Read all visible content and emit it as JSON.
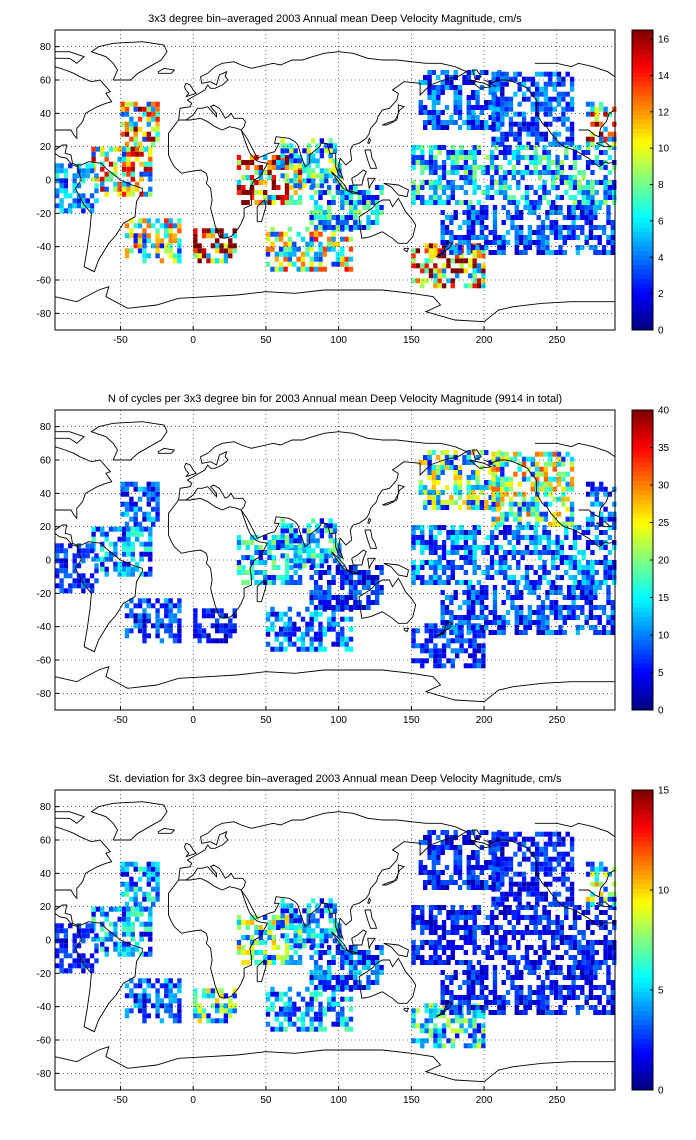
{
  "chart_data": [
    {
      "type": "heatmap",
      "title": "3x3 degree bin–averaged 2003 Annual mean Deep Velocity Magnitude, cm/s",
      "xlabel": "",
      "ylabel": "",
      "xlim": [
        -95,
        290
      ],
      "ylim": [
        -90,
        90
      ],
      "xticks": [
        -50,
        0,
        50,
        100,
        150,
        200,
        250
      ],
      "yticks": [
        80,
        60,
        40,
        20,
        0,
        -20,
        -40,
        -60,
        -80
      ],
      "grid": true,
      "colorbar": {
        "min": 0,
        "max": 16.5,
        "ticks": [
          0,
          2,
          4,
          6,
          8,
          10,
          12,
          14,
          16
        ],
        "colormap": "jet"
      },
      "region_means": [
        {
          "lon0": -50,
          "lon1": -24,
          "lat0": 20,
          "lat1": 47,
          "value": 10
        },
        {
          "lon0": -70,
          "lon1": -30,
          "lat0": -10,
          "lat1": 18,
          "value": 9
        },
        {
          "lon0": -95,
          "lon1": -65,
          "lat0": -20,
          "lat1": 10,
          "value": 4
        },
        {
          "lon0": -47,
          "lon1": -10,
          "lat0": -50,
          "lat1": -25,
          "value": 8
        },
        {
          "lon0": 0,
          "lon1": 30,
          "lat0": -50,
          "lat1": -30,
          "value": 14
        },
        {
          "lon0": 30,
          "lon1": 75,
          "lat0": -15,
          "lat1": 15,
          "value": 11
        },
        {
          "lon0": 60,
          "lon1": 100,
          "lat0": -5,
          "lat1": 25,
          "value": 6
        },
        {
          "lon0": 50,
          "lon1": 110,
          "lat0": -55,
          "lat1": -30,
          "value": 8
        },
        {
          "lon0": 80,
          "lon1": 130,
          "lat0": -30,
          "lat1": -5,
          "value": 5
        },
        {
          "lon0": 150,
          "lon1": 200,
          "lat0": -65,
          "lat1": -40,
          "value": 11
        },
        {
          "lon0": 155,
          "lon1": 210,
          "lat0": 30,
          "lat1": 65,
          "value": 3
        },
        {
          "lon0": 205,
          "lon1": 260,
          "lat0": 20,
          "lat1": 65,
          "value": 3
        },
        {
          "lon0": 150,
          "lon1": 290,
          "lat0": -15,
          "lat1": 20,
          "value": 5
        },
        {
          "lon0": 170,
          "lon1": 290,
          "lat0": -45,
          "lat1": -15,
          "value": 3
        },
        {
          "lon0": 270,
          "lon1": 290,
          "lat0": 20,
          "lat1": 45,
          "value": 10
        }
      ]
    },
    {
      "type": "heatmap",
      "title": "N of cycles per 3x3 degree bin for 2003 Annual mean Deep Velocity Magnitude (9914 in total)",
      "xlabel": "",
      "ylabel": "",
      "xlim": [
        -95,
        290
      ],
      "ylim": [
        -90,
        90
      ],
      "xticks": [
        -50,
        0,
        50,
        100,
        150,
        200,
        250
      ],
      "yticks": [
        80,
        60,
        40,
        20,
        0,
        -20,
        -40,
        -60,
        -80
      ],
      "grid": true,
      "colorbar": {
        "min": 0,
        "max": 40,
        "ticks": [
          0,
          5,
          10,
          15,
          20,
          25,
          30,
          35,
          40
        ],
        "colormap": "jet"
      },
      "region_means": [
        {
          "lon0": -50,
          "lon1": -24,
          "lat0": 20,
          "lat1": 47,
          "value": 8
        },
        {
          "lon0": -70,
          "lon1": -30,
          "lat0": -10,
          "lat1": 18,
          "value": 10
        },
        {
          "lon0": -95,
          "lon1": -65,
          "lat0": -20,
          "lat1": 10,
          "value": 6
        },
        {
          "lon0": -47,
          "lon1": -10,
          "lat0": -50,
          "lat1": -25,
          "value": 7
        },
        {
          "lon0": 0,
          "lon1": 30,
          "lat0": -50,
          "lat1": -30,
          "value": 5
        },
        {
          "lon0": 30,
          "lon1": 75,
          "lat0": -15,
          "lat1": 15,
          "value": 12
        },
        {
          "lon0": 60,
          "lon1": 100,
          "lat0": -5,
          "lat1": 25,
          "value": 12
        },
        {
          "lon0": 50,
          "lon1": 110,
          "lat0": -55,
          "lat1": -30,
          "value": 9
        },
        {
          "lon0": 80,
          "lon1": 130,
          "lat0": -30,
          "lat1": -5,
          "value": 6
        },
        {
          "lon0": 150,
          "lon1": 200,
          "lat0": -65,
          "lat1": -40,
          "value": 6
        },
        {
          "lon0": 155,
          "lon1": 210,
          "lat0": 30,
          "lat1": 65,
          "value": 16
        },
        {
          "lon0": 205,
          "lon1": 260,
          "lat0": 20,
          "lat1": 65,
          "value": 18
        },
        {
          "lon0": 150,
          "lon1": 290,
          "lat0": -15,
          "lat1": 20,
          "value": 9
        },
        {
          "lon0": 170,
          "lon1": 290,
          "lat0": -45,
          "lat1": -15,
          "value": 7
        },
        {
          "lon0": 270,
          "lon1": 290,
          "lat0": 20,
          "lat1": 45,
          "value": 8
        }
      ]
    },
    {
      "type": "heatmap",
      "title": "St. deviation for 3x3 degree bin–averaged 2003 Annual mean Deep Velocity Magnitude, cm/s",
      "xlabel": "",
      "ylabel": "",
      "xlim": [
        -95,
        290
      ],
      "ylim": [
        -90,
        90
      ],
      "xticks": [
        -50,
        0,
        50,
        100,
        150,
        200,
        250
      ],
      "yticks": [
        80,
        60,
        40,
        20,
        0,
        -20,
        -40,
        -60,
        -80
      ],
      "grid": true,
      "colorbar": {
        "min": 0,
        "max": 15,
        "ticks": [
          0,
          5,
          10,
          15
        ],
        "colormap": "jet"
      },
      "region_means": [
        {
          "lon0": -50,
          "lon1": -24,
          "lat0": 20,
          "lat1": 47,
          "value": 4
        },
        {
          "lon0": -70,
          "lon1": -30,
          "lat0": -10,
          "lat1": 18,
          "value": 4
        },
        {
          "lon0": -95,
          "lon1": -65,
          "lat0": -20,
          "lat1": 10,
          "value": 2
        },
        {
          "lon0": -47,
          "lon1": -10,
          "lat0": -50,
          "lat1": -25,
          "value": 3
        },
        {
          "lon0": 0,
          "lon1": 30,
          "lat0": -50,
          "lat1": -30,
          "value": 6
        },
        {
          "lon0": 30,
          "lon1": 75,
          "lat0": -15,
          "lat1": 15,
          "value": 6
        },
        {
          "lon0": 60,
          "lon1": 100,
          "lat0": -5,
          "lat1": 25,
          "value": 4
        },
        {
          "lon0": 50,
          "lon1": 110,
          "lat0": -55,
          "lat1": -30,
          "value": 4
        },
        {
          "lon0": 80,
          "lon1": 130,
          "lat0": -30,
          "lat1": -5,
          "value": 3
        },
        {
          "lon0": 150,
          "lon1": 200,
          "lat0": -65,
          "lat1": -40,
          "value": 5
        },
        {
          "lon0": 155,
          "lon1": 210,
          "lat0": 30,
          "lat1": 65,
          "value": 2
        },
        {
          "lon0": 205,
          "lon1": 260,
          "lat0": 20,
          "lat1": 65,
          "value": 2
        },
        {
          "lon0": 150,
          "lon1": 290,
          "lat0": -15,
          "lat1": 20,
          "value": 2
        },
        {
          "lon0": 170,
          "lon1": 290,
          "lat0": -45,
          "lat1": -15,
          "value": 2
        },
        {
          "lon0": 270,
          "lon1": 290,
          "lat0": 20,
          "lat1": 45,
          "value": 6
        }
      ]
    }
  ]
}
